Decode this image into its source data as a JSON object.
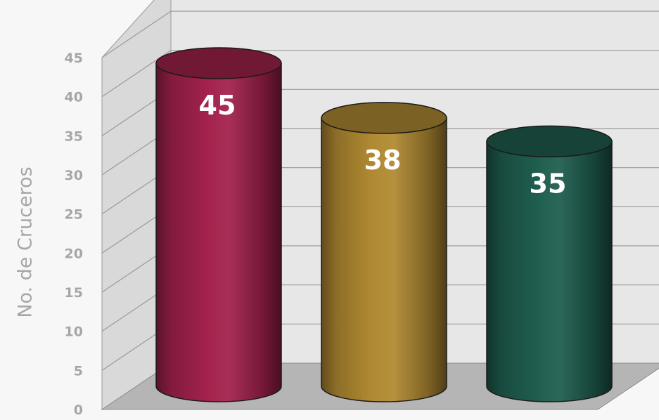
{
  "chart_data": {
    "type": "bar",
    "style": "3d-cylinder",
    "title": "",
    "xlabel": "",
    "ylabel": "No. de Cruceros",
    "ylim": [
      0,
      45
    ],
    "yticks": [
      0,
      5,
      10,
      15,
      20,
      25,
      30,
      35,
      40,
      45
    ],
    "grid": true,
    "legend": "none",
    "series": [
      {
        "values": [
          45,
          38,
          35
        ],
        "colors": [
          "#a2224c",
          "#b08a32",
          "#1f5e4f"
        ]
      }
    ],
    "data_labels": [
      "45",
      "38",
      "35"
    ]
  }
}
